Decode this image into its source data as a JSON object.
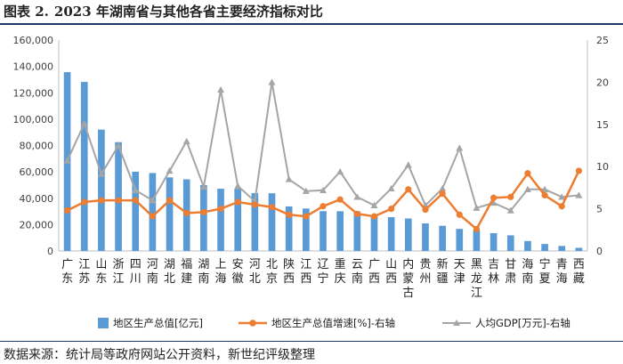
{
  "title": {
    "label": "图表 2.",
    "text": "2023 年湖南省与其他各省主要经济指标对比"
  },
  "source": "数据来源：统计局等政府网站公开资料，新世纪评级整理",
  "chart_data": {
    "type": "bar",
    "categories": [
      "广东",
      "江苏",
      "山东",
      "浙江",
      "四川",
      "河南",
      "湖北",
      "福建",
      "湖南",
      "上海",
      "安徽",
      "河北",
      "北京",
      "陕西",
      "江西",
      "辽宁",
      "重庆",
      "云南",
      "广西",
      "山西",
      "内蒙古",
      "贵州",
      "新疆",
      "天津",
      "黑龙江",
      "吉林",
      "甘肃",
      "海南",
      "宁夏",
      "青海",
      "西藏"
    ],
    "y_left": {
      "ylim": [
        0,
        160000
      ],
      "ticks": [
        0,
        20000,
        40000,
        60000,
        80000,
        100000,
        120000,
        140000,
        160000
      ],
      "tick_labels": [
        "0",
        "20,000",
        "40,000",
        "60,000",
        "80,000",
        "100,000",
        "120,000",
        "140,000",
        "160,000"
      ]
    },
    "y_right": {
      "ylim": [
        0,
        25
      ],
      "ticks": [
        0,
        5,
        10,
        15,
        20,
        25
      ],
      "tick_labels": [
        "0",
        "5",
        "10",
        "15",
        "20",
        "25"
      ]
    },
    "series": [
      {
        "name": "地区生产总值[亿元]",
        "type": "bar",
        "axis": "left",
        "color": "#5b9bd5",
        "values": [
          135673,
          128222,
          92069,
          82553,
          60133,
          59132,
          55804,
          54355,
          50013,
          47219,
          47051,
          43944,
          43761,
          33786,
          32200,
          30209,
          30146,
          30021,
          27202,
          25698,
          24627,
          20913,
          19126,
          16737,
          15884,
          13531,
          11864,
          7551,
          5315,
          3799,
          2393
        ]
      },
      {
        "name": "地区生产总值增速[%]-右轴",
        "type": "line",
        "axis": "right",
        "color": "#ed7d31",
        "values": [
          4.8,
          5.8,
          6.0,
          6.0,
          6.0,
          4.1,
          6.0,
          4.5,
          4.6,
          5.0,
          5.8,
          5.5,
          5.2,
          4.3,
          4.1,
          5.3,
          6.1,
          4.4,
          4.1,
          5.0,
          7.3,
          4.9,
          6.8,
          4.3,
          2.6,
          6.3,
          6.4,
          9.2,
          6.6,
          5.3,
          9.5
        ]
      },
      {
        "name": "人均GDP[万元]-右轴",
        "type": "line",
        "axis": "right",
        "color": "#a5a5a5",
        "values": [
          10.7,
          15.1,
          9.1,
          12.5,
          7.2,
          6.0,
          9.5,
          13.0,
          7.6,
          19.1,
          7.7,
          5.9,
          20.0,
          8.5,
          7.1,
          7.2,
          9.4,
          6.4,
          5.4,
          7.4,
          10.2,
          5.4,
          7.4,
          12.2,
          5.1,
          5.7,
          4.8,
          7.3,
          7.3,
          6.4,
          6.6
        ]
      }
    ],
    "legend_position": "bottom",
    "grid": false
  }
}
